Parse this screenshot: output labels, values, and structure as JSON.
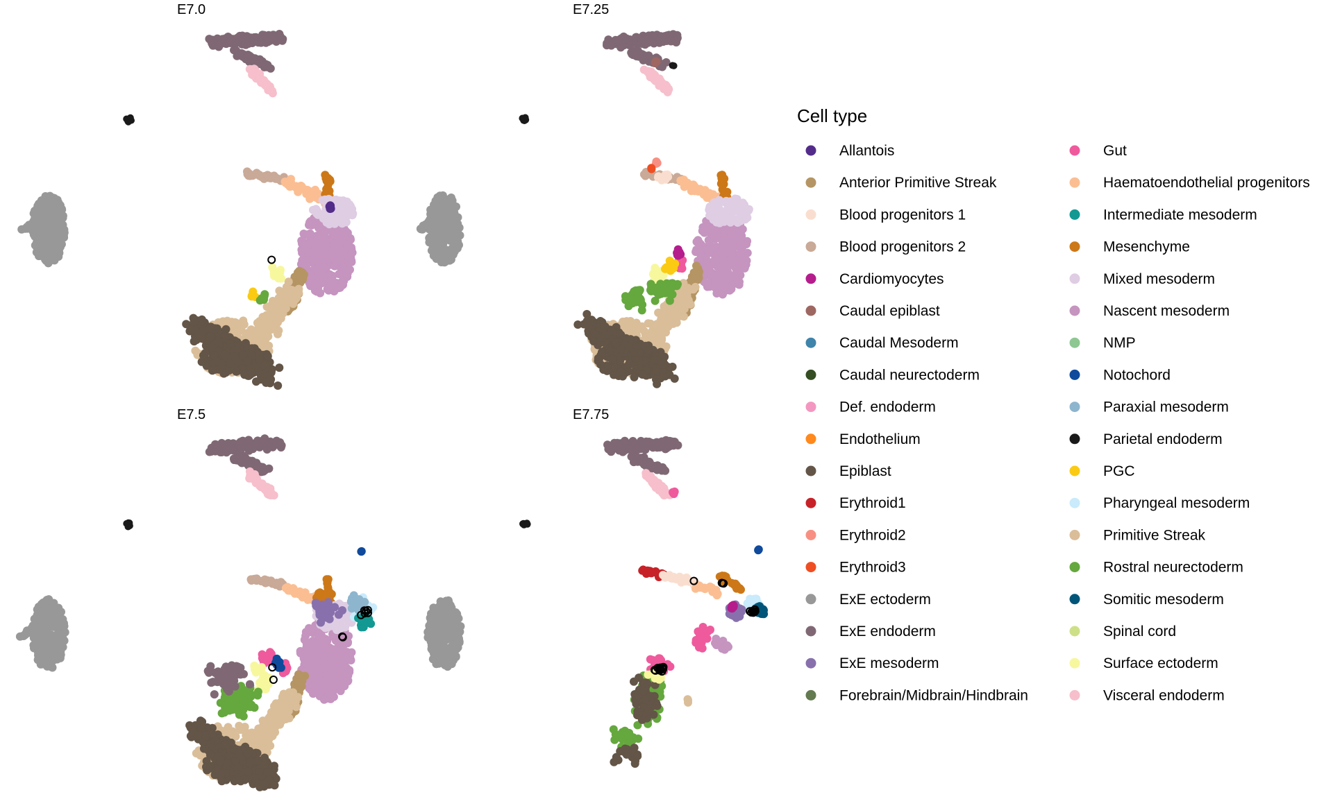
{
  "chart_data": {
    "type": "scatter",
    "panels": [
      {
        "title": "E7.0"
      },
      {
        "title": "E7.25"
      },
      {
        "title": "E7.5"
      },
      {
        "title": "E7.75"
      }
    ],
    "legend": {
      "title": "Cell type",
      "placement": "right",
      "entries": [
        {
          "label": "Allantois",
          "color": "#532C8A"
        },
        {
          "label": "Anterior Primitive Streak",
          "color": "#B59563"
        },
        {
          "label": "Blood progenitors 1",
          "color": "#F9DECF"
        },
        {
          "label": "Blood progenitors 2",
          "color": "#C9A997"
        },
        {
          "label": "Cardiomyocytes",
          "color": "#B51D8D"
        },
        {
          "label": "Caudal epiblast",
          "color": "#9E6762"
        },
        {
          "label": "Caudal Mesoderm",
          "color": "#3F84AA"
        },
        {
          "label": "Caudal neurectoderm",
          "color": "#354E23"
        },
        {
          "label": "Def. endoderm",
          "color": "#F397C0"
        },
        {
          "label": "Endothelium",
          "color": "#FF891C"
        },
        {
          "label": "Epiblast",
          "color": "#635547"
        },
        {
          "label": "Erythroid1",
          "color": "#C72228"
        },
        {
          "label": "Erythroid2",
          "color": "#F79083"
        },
        {
          "label": "Erythroid3",
          "color": "#EF4E22"
        },
        {
          "label": "ExE ectoderm",
          "color": "#989898"
        },
        {
          "label": "ExE endoderm",
          "color": "#7F6874"
        },
        {
          "label": "ExE mesoderm",
          "color": "#8870AD"
        },
        {
          "label": "Forebrain/Midbrain/Hindbrain",
          "color": "#647A4F"
        },
        {
          "label": "Gut",
          "color": "#EF5A9D"
        },
        {
          "label": "Haematoendothelial progenitors",
          "color": "#FBBE92"
        },
        {
          "label": "Intermediate mesoderm",
          "color": "#139992"
        },
        {
          "label": "Mesenchyme",
          "color": "#CC7818"
        },
        {
          "label": "Mixed mesoderm",
          "color": "#DFCDE4"
        },
        {
          "label": "Nascent mesoderm",
          "color": "#C594BF"
        },
        {
          "label": "NMP",
          "color": "#8EC792"
        },
        {
          "label": "Notochord",
          "color": "#0F4A9C"
        },
        {
          "label": "Paraxial mesoderm",
          "color": "#8DB5CE"
        },
        {
          "label": "Parietal endoderm",
          "color": "#1A1A1A"
        },
        {
          "label": "PGC",
          "color": "#FACB12"
        },
        {
          "label": "Pharyngeal mesoderm",
          "color": "#C9EBFB"
        },
        {
          "label": "Primitive Streak",
          "color": "#DABE99"
        },
        {
          "label": "Rostral neurectoderm",
          "color": "#65A83E"
        },
        {
          "label": "Somitic mesoderm",
          "color": "#005579"
        },
        {
          "label": "Spinal cord",
          "color": "#CDE088"
        },
        {
          "label": "Surface ectoderm",
          "color": "#F7F79E"
        },
        {
          "label": "Visceral endoderm",
          "color": "#F6BFCB"
        }
      ]
    },
    "axes": "none",
    "grid": false,
    "point_style": "filled circles; selected cells drawn as black open circles"
  }
}
